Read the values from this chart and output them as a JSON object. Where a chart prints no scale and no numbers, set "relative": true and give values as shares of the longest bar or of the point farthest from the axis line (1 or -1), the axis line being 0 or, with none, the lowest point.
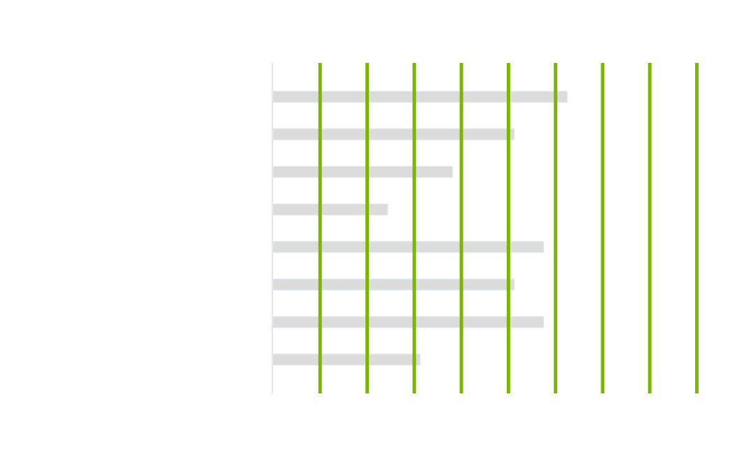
{
  "chart_data": {
    "type": "bar",
    "orientation": "horizontal",
    "relative": true,
    "categories": [
      null,
      null,
      null,
      null,
      null,
      null,
      null,
      null
    ],
    "series": [
      {
        "color": "#dcdcdc",
        "values": [
          1,
          0.82,
          0.61,
          0.39,
          0.92,
          0.82,
          0.92,
          0.5
        ]
      }
    ],
    "ref_lines": [
      {
        "axis": "x",
        "value": 0.16,
        "color": "#7ab800"
      },
      {
        "axis": "x",
        "value": 0.32,
        "color": "#7ab800"
      },
      {
        "axis": "x",
        "value": 0.48,
        "color": "#7ab800"
      },
      {
        "axis": "x",
        "value": 0.64,
        "color": "#7ab800"
      },
      {
        "axis": "x",
        "value": 0.8,
        "color": "#7ab800"
      },
      {
        "axis": "x",
        "value": 0.96,
        "color": "#7ab800"
      },
      {
        "axis": "x",
        "value": 1.12,
        "color": "#7ab800"
      },
      {
        "axis": "x",
        "value": 1.28,
        "color": "#7ab800"
      },
      {
        "axis": "x",
        "value": 1.44,
        "color": "#7ab800"
      }
    ]
  }
}
